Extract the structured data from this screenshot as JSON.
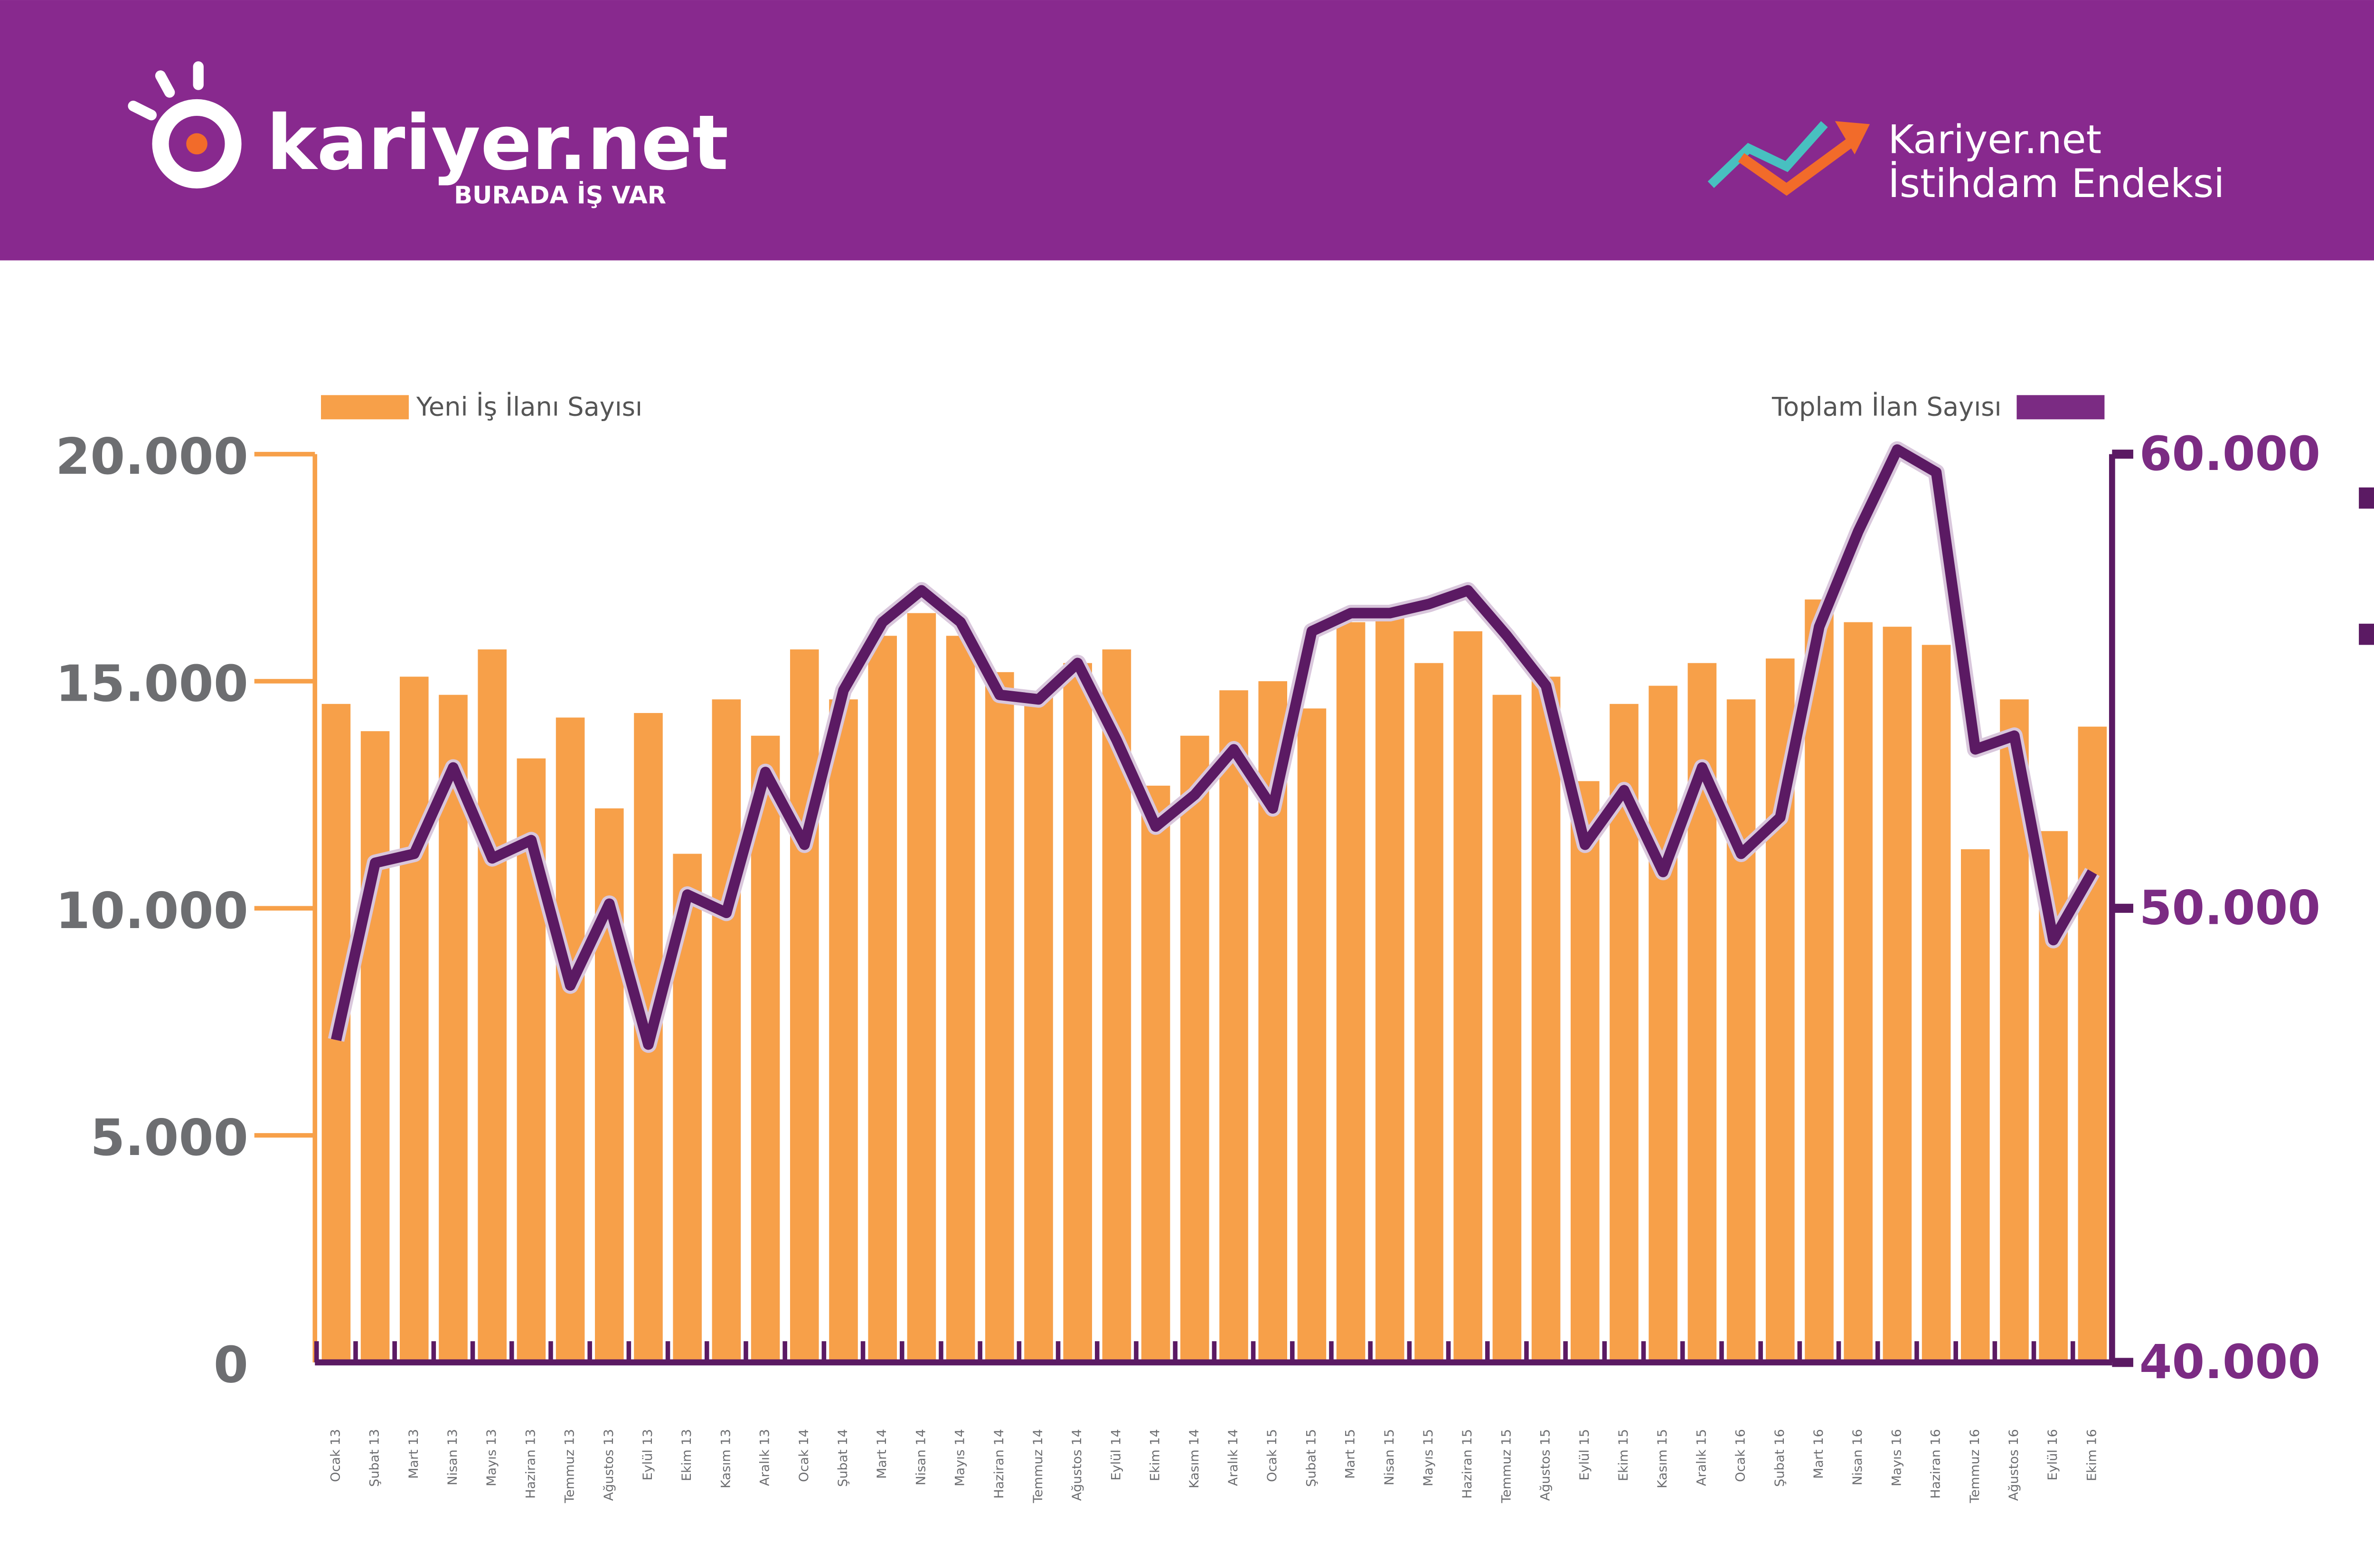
{
  "header": {
    "brand": "kariyer.net",
    "slogan": "BURADA İŞ VAR",
    "index_title_1": "Kariyer.net",
    "index_title_2": "İstihdam Endeksi"
  },
  "chart_data": {
    "type": "bar",
    "categories": [
      "Ocak 13",
      "Şubat 13",
      "Mart 13",
      "Nisan 13",
      "Mayıs 13",
      "Haziran 13",
      "Temmuz 13",
      "Ağustos 13",
      "Eylül 13",
      "Ekim 13",
      "Kasım 13",
      "Aralık 13",
      "Ocak 14",
      "Şubat 14",
      "Mart 14",
      "Nisan 14",
      "Mayıs 14",
      "Haziran 14",
      "Temmuz 14",
      "Ağustos 14",
      "Eylül 14",
      "Ekim 14",
      "Kasım 14",
      "Aralık 14",
      "Ocak 15",
      "Şubat 15",
      "Mart 15",
      "Nisan 15",
      "Mayıs 15",
      "Haziran 15",
      "Temmuz 15",
      "Ağustos 15",
      "Eylül 15",
      "Ekim 15",
      "Kasım 15",
      "Aralık 15",
      "Ocak 16",
      "Şubat 16",
      "Mart 16",
      "Nisan 16",
      "Mayıs 16",
      "Haziran 16",
      "Temmuz 16",
      "Ağustos 16",
      "Eylül 16",
      "Ekim 16"
    ],
    "series": [
      {
        "name": "Yeni İş İlanı Sayısı",
        "type": "bar",
        "color": "#f7a049",
        "values": [
          14500,
          13900,
          15100,
          14700,
          15700,
          13300,
          14200,
          12200,
          14300,
          11200,
          14600,
          13800,
          15700,
          14600,
          16000,
          16500,
          16000,
          15200,
          14700,
          15400,
          15700,
          12700,
          13800,
          14800,
          15000,
          14400,
          16300,
          16400,
          15400,
          16100,
          14700,
          15100,
          12800,
          14500,
          14900,
          15400,
          14600,
          15500,
          16800,
          16300,
          16200,
          15800,
          11300,
          14600,
          11700,
          14000
        ]
      },
      {
        "name": "Toplam İlan Sayısı",
        "type": "line",
        "axis": "y2",
        "color": "#5b1a63",
        "values": [
          47100,
          51000,
          51200,
          53100,
          51100,
          51500,
          48300,
          50100,
          47000,
          50300,
          49900,
          53000,
          51400,
          54800,
          56300,
          57000,
          56300,
          54700,
          54600,
          55400,
          53700,
          51800,
          52500,
          53500,
          52200,
          56100,
          56500,
          56500,
          56700,
          57000,
          56000,
          54900,
          51400,
          52600,
          50800,
          53100,
          51200,
          52000,
          56200,
          58300,
          60100,
          59600,
          53500,
          53800,
          49300,
          50800
        ]
      }
    ],
    "ylim": [
      0,
      20000
    ],
    "yticks": [
      0,
      {
        "value": 5000,
        "label": "5.000"
      },
      {
        "value": 10000,
        "label": "10.000"
      },
      {
        "value": 15000,
        "label": "15.000"
      },
      {
        "value": 20000,
        "label": "20.000"
      }
    ],
    "y2lim": [
      40000,
      60000
    ],
    "y2ticks": [
      {
        "value": 40000,
        "label": "40.000"
      },
      {
        "value": 50000,
        "label": "50.000"
      },
      {
        "value": 60000,
        "label": "60.000"
      }
    ],
    "grid": false
  }
}
